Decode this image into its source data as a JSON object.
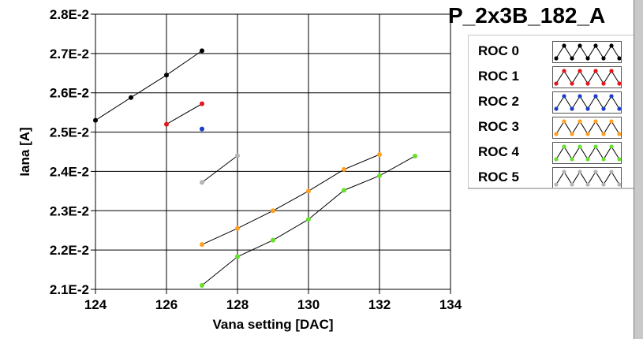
{
  "chart_data": {
    "type": "scatter",
    "title": "",
    "xlabel": "Vana setting [DAC]",
    "ylabel": "Iana [A]",
    "xlim": [
      124,
      134
    ],
    "ylim": [
      0.021,
      0.028
    ],
    "x_ticks": [
      "124",
      "126",
      "128",
      "130",
      "132",
      "134"
    ],
    "y_ticks": [
      "2.1E-2",
      "2.2E-2",
      "2.3E-2",
      "2.4E-2",
      "2.5E-2",
      "2.6E-2",
      "2.7E-2",
      "2.8E-2"
    ],
    "grid": true,
    "legend_position": "right",
    "legend_title": "P_2x3B_182_A",
    "series": [
      {
        "name": "ROC 0",
        "color": "#000000",
        "x": [
          124,
          125,
          126,
          127
        ],
        "y": [
          0.0253,
          0.02588,
          0.02645,
          0.02707
        ]
      },
      {
        "name": "ROC 1",
        "color": "#e8141a",
        "x": [
          126,
          127
        ],
        "y": [
          0.0252,
          0.02572
        ]
      },
      {
        "name": "ROC 2",
        "color": "#1a3fcc",
        "x": [
          127
        ],
        "y": [
          0.02508
        ]
      },
      {
        "name": "ROC 3",
        "color": "#ffa01e",
        "x": [
          127,
          128,
          129,
          130,
          131,
          132
        ],
        "y": [
          0.02214,
          0.02255,
          0.023,
          0.0235,
          0.02405,
          0.02443
        ]
      },
      {
        "name": "ROC 4",
        "color": "#66e02a",
        "x": [
          127,
          128,
          129,
          130,
          131,
          132,
          133
        ],
        "y": [
          0.0211,
          0.02183,
          0.02225,
          0.02278,
          0.02352,
          0.02389,
          0.02439
        ]
      },
      {
        "name": "ROC 5",
        "color": "#b4b4b4",
        "x": [
          127,
          128
        ],
        "y": [
          0.02372,
          0.0244
        ]
      }
    ]
  }
}
